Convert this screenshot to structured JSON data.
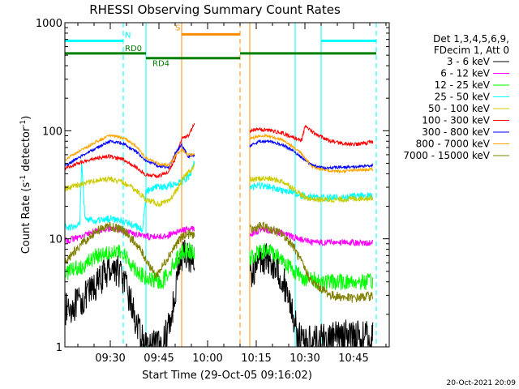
{
  "chart_data": {
    "type": "line",
    "title": "RHESSI Observing Summary Count Rates",
    "xlabel": "Start Time (29-Oct-05 09:16:02)",
    "ylabel": "Count Rate (s-1 detector-1)",
    "ylabel_base": "Count Rate (s",
    "ylabel_sup1": "-1",
    "ylabel_mid": " detector",
    "ylabel_sup2": "-1",
    "ylabel_end": ")",
    "yscale": "log",
    "ylim": [
      1,
      1000
    ],
    "xlim_minutes": [
      0,
      100
    ],
    "x_units": "minutes after 09:16:02",
    "x_ticks": [
      {
        "m": 14,
        "label": "09:30"
      },
      {
        "m": 29,
        "label": "09:45"
      },
      {
        "m": 44,
        "label": "10:00"
      },
      {
        "m": 59,
        "label": "10:15"
      },
      {
        "m": 74,
        "label": "10:30"
      },
      {
        "m": 89,
        "label": "10:45"
      }
    ],
    "y_ticks": [
      {
        "v": 1,
        "label": "1"
      },
      {
        "v": 10,
        "label": "10"
      },
      {
        "v": 100,
        "label": "100"
      },
      {
        "v": 1000,
        "label": "1000"
      }
    ],
    "legend_header": [
      "Det 1,3,4,5,6,9,",
      "FDecim 1, Att 0"
    ],
    "legend_position": "right",
    "data_gap_minutes": [
      40,
      57
    ],
    "series": [
      {
        "name": "3 - 6 keV",
        "color": "#000000",
        "noise": 0.35,
        "pts": [
          [
            0,
            2.2
          ],
          [
            5,
            2.6
          ],
          [
            10,
            3.8
          ],
          [
            14,
            5.5
          ],
          [
            17,
            5.0
          ],
          [
            20,
            2.8
          ],
          [
            23,
            1.3
          ],
          [
            25,
            1.0
          ],
          [
            30,
            1.0
          ],
          [
            33,
            2.0
          ],
          [
            35,
            5.5
          ],
          [
            37,
            7.5
          ],
          [
            40,
            6.0
          ],
          [
            57,
            4.5
          ],
          [
            60,
            6.5
          ],
          [
            63,
            6.5
          ],
          [
            66,
            5.0
          ],
          [
            69,
            3.0
          ],
          [
            72,
            1.2
          ],
          [
            76,
            1.1
          ],
          [
            82,
            1.2
          ],
          [
            89,
            1.3
          ],
          [
            95,
            1.2
          ]
        ]
      },
      {
        "name": "6 - 12 keV",
        "color": "#ff00ff",
        "noise": 0.07,
        "pts": [
          [
            0,
            9.5
          ],
          [
            5,
            10.5
          ],
          [
            10,
            12
          ],
          [
            14,
            12.5
          ],
          [
            20,
            11.5
          ],
          [
            25,
            10.5
          ],
          [
            30,
            10.5
          ],
          [
            33,
            11
          ],
          [
            36,
            12
          ],
          [
            40,
            12.5
          ],
          [
            57,
            11
          ],
          [
            60,
            12
          ],
          [
            63,
            12
          ],
          [
            68,
            11
          ],
          [
            72,
            10
          ],
          [
            76,
            9.3
          ],
          [
            82,
            9.3
          ],
          [
            89,
            9.2
          ],
          [
            95,
            9.2
          ]
        ]
      },
      {
        "name": "12 - 25 keV",
        "color": "#00ff00",
        "noise": 0.18,
        "pts": [
          [
            0,
            4.8
          ],
          [
            5,
            5.5
          ],
          [
            10,
            7
          ],
          [
            14,
            7.8
          ],
          [
            18,
            7.2
          ],
          [
            22,
            5.2
          ],
          [
            25,
            4.2
          ],
          [
            30,
            4.0
          ],
          [
            33,
            5.5
          ],
          [
            36,
            7.5
          ],
          [
            38,
            8
          ],
          [
            40,
            7
          ],
          [
            57,
            6.5
          ],
          [
            60,
            7.5
          ],
          [
            63,
            7.8
          ],
          [
            67,
            6.5
          ],
          [
            70,
            5.2
          ],
          [
            74,
            4.3
          ],
          [
            80,
            4.0
          ],
          [
            89,
            4.0
          ],
          [
            95,
            4.0
          ]
        ]
      },
      {
        "name": "25 - 50 keV",
        "color": "#00ffff",
        "noise": 0.08,
        "pts": [
          [
            0,
            13
          ],
          [
            3,
            12.5
          ],
          [
            4.6,
            14
          ],
          [
            5.2,
            55
          ],
          [
            6.2,
            15
          ],
          [
            10,
            14.5
          ],
          [
            14,
            15.5
          ],
          [
            18,
            14.5
          ],
          [
            22,
            13
          ],
          [
            24,
            12
          ],
          [
            25,
            27
          ],
          [
            28,
            30
          ],
          [
            30,
            30
          ],
          [
            32,
            31
          ],
          [
            35,
            33
          ],
          [
            37,
            35
          ],
          [
            39,
            40
          ],
          [
            40,
            55
          ],
          [
            57,
            30
          ],
          [
            60,
            31
          ],
          [
            63,
            30
          ],
          [
            67,
            28
          ],
          [
            70,
            27
          ],
          [
            73,
            25
          ],
          [
            78,
            24
          ],
          [
            84,
            24
          ],
          [
            89,
            24.5
          ],
          [
            95,
            25
          ]
        ]
      },
      {
        "name": "50 - 100 keV",
        "color": "#cccc00",
        "noise": 0.06,
        "pts": [
          [
            0,
            29
          ],
          [
            5,
            32
          ],
          [
            10,
            35
          ],
          [
            14,
            36
          ],
          [
            18,
            33
          ],
          [
            22,
            28
          ],
          [
            25,
            23
          ],
          [
            29,
            21
          ],
          [
            32,
            22
          ],
          [
            35,
            30
          ],
          [
            37,
            38
          ],
          [
            38.5,
            43
          ],
          [
            39.5,
            45
          ],
          [
            40,
            48
          ],
          [
            57,
            35
          ],
          [
            60,
            36
          ],
          [
            63,
            36
          ],
          [
            67,
            34
          ],
          [
            70,
            30
          ],
          [
            74,
            24
          ],
          [
            78,
            23
          ],
          [
            84,
            23
          ],
          [
            89,
            23.5
          ],
          [
            95,
            24
          ]
        ]
      },
      {
        "name": "100 - 300 keV",
        "color": "#ff0000",
        "noise": 0.04,
        "pts": [
          [
            0,
            45
          ],
          [
            5,
            51
          ],
          [
            10,
            56
          ],
          [
            14,
            58
          ],
          [
            18,
            54
          ],
          [
            22,
            46
          ],
          [
            25,
            39
          ],
          [
            29,
            38
          ],
          [
            32,
            42
          ],
          [
            34,
            55
          ],
          [
            36,
            84
          ],
          [
            38,
            90
          ],
          [
            40,
            115
          ],
          [
            57,
            100
          ],
          [
            60,
            103
          ],
          [
            63,
            101
          ],
          [
            67,
            95
          ],
          [
            70,
            88
          ],
          [
            73,
            82
          ],
          [
            74,
            110
          ],
          [
            78,
            90
          ],
          [
            82,
            80
          ],
          [
            86,
            76
          ],
          [
            89,
            75
          ],
          [
            92,
            76
          ],
          [
            95,
            79
          ]
        ]
      },
      {
        "name": "300 - 800 keV",
        "color": "#0000ff",
        "noise": 0.03,
        "pts": [
          [
            0,
            47
          ],
          [
            5,
            58
          ],
          [
            10,
            70
          ],
          [
            14,
            80
          ],
          [
            18,
            76
          ],
          [
            22,
            64
          ],
          [
            25,
            53
          ],
          [
            29,
            47
          ],
          [
            32,
            46
          ],
          [
            34,
            62
          ],
          [
            36,
            74
          ],
          [
            38,
            58
          ],
          [
            40,
            60
          ],
          [
            57,
            72
          ],
          [
            60,
            80
          ],
          [
            63,
            80
          ],
          [
            67,
            74
          ],
          [
            70,
            66
          ],
          [
            73,
            57
          ],
          [
            76,
            48
          ],
          [
            80,
            45
          ],
          [
            85,
            46
          ],
          [
            89,
            46
          ],
          [
            95,
            48
          ]
        ]
      },
      {
        "name": "800 - 7000 keV",
        "color": "#ffa500",
        "noise": 0.03,
        "pts": [
          [
            0,
            54
          ],
          [
            5,
            66
          ],
          [
            10,
            80
          ],
          [
            14,
            91
          ],
          [
            18,
            86
          ],
          [
            22,
            72
          ],
          [
            25,
            56
          ],
          [
            29,
            49
          ],
          [
            32,
            48
          ],
          [
            34,
            58
          ],
          [
            36,
            68
          ],
          [
            38,
            60
          ],
          [
            40,
            60
          ],
          [
            57,
            84
          ],
          [
            60,
            90
          ],
          [
            63,
            89
          ],
          [
            67,
            82
          ],
          [
            70,
            72
          ],
          [
            73,
            62
          ],
          [
            76,
            47
          ],
          [
            80,
            43
          ],
          [
            85,
            42
          ],
          [
            89,
            43
          ],
          [
            95,
            44
          ]
        ]
      },
      {
        "name": "7000 - 15000 keV",
        "color": "#808000",
        "noise": 0.1,
        "pts": [
          [
            0,
            6
          ],
          [
            5,
            9
          ],
          [
            10,
            12
          ],
          [
            14,
            13
          ],
          [
            18,
            12
          ],
          [
            22,
            9
          ],
          [
            25,
            6.5
          ],
          [
            28,
            4.5
          ],
          [
            30,
            5.5
          ],
          [
            32,
            7
          ],
          [
            35,
            9.5
          ],
          [
            37,
            11
          ],
          [
            40,
            11
          ],
          [
            57,
            12
          ],
          [
            60,
            13
          ],
          [
            63,
            12.5
          ],
          [
            67,
            11
          ],
          [
            70,
            9
          ],
          [
            73,
            6
          ],
          [
            76,
            4
          ],
          [
            82,
            3.0
          ],
          [
            89,
            2.8
          ],
          [
            95,
            3.0
          ]
        ]
      }
    ],
    "state_bars": [
      {
        "label": "N",
        "color": "#00ffff",
        "y": 680,
        "segments": [
          [
            0,
            18
          ],
          [
            79,
            96
          ]
        ]
      },
      {
        "label": "S",
        "color": "#ff8c00",
        "y": 780,
        "segments": [
          [
            36,
            54
          ]
        ]
      },
      {
        "label": "RD0",
        "color": "#008000",
        "y": 520,
        "segments": [
          [
            0,
            25
          ],
          [
            54,
            72
          ],
          [
            72,
            96
          ]
        ]
      },
      {
        "label": "RD4",
        "color": "#008000",
        "y": 470,
        "segments": [
          [
            25,
            54
          ]
        ]
      }
    ],
    "vlines": [
      {
        "m": 0,
        "color": "#00ffff",
        "dashed": false
      },
      {
        "m": 18,
        "color": "#00ffff",
        "dashed": true
      },
      {
        "m": 25,
        "color": "#00ffff",
        "dashed": false
      },
      {
        "m": 36,
        "color": "#ff8c00",
        "dashed": false
      },
      {
        "m": 54,
        "color": "#ff8c00",
        "dashed": true
      },
      {
        "m": 57,
        "color": "#ff8c00",
        "dashed": false
      },
      {
        "m": 71,
        "color": "#00ffff",
        "dashed": false
      },
      {
        "m": 79,
        "color": "#00ffff",
        "dashed": false
      },
      {
        "m": 96,
        "color": "#00ffff",
        "dashed": true
      }
    ],
    "timestamp": "20-Oct-2021 20:09"
  }
}
